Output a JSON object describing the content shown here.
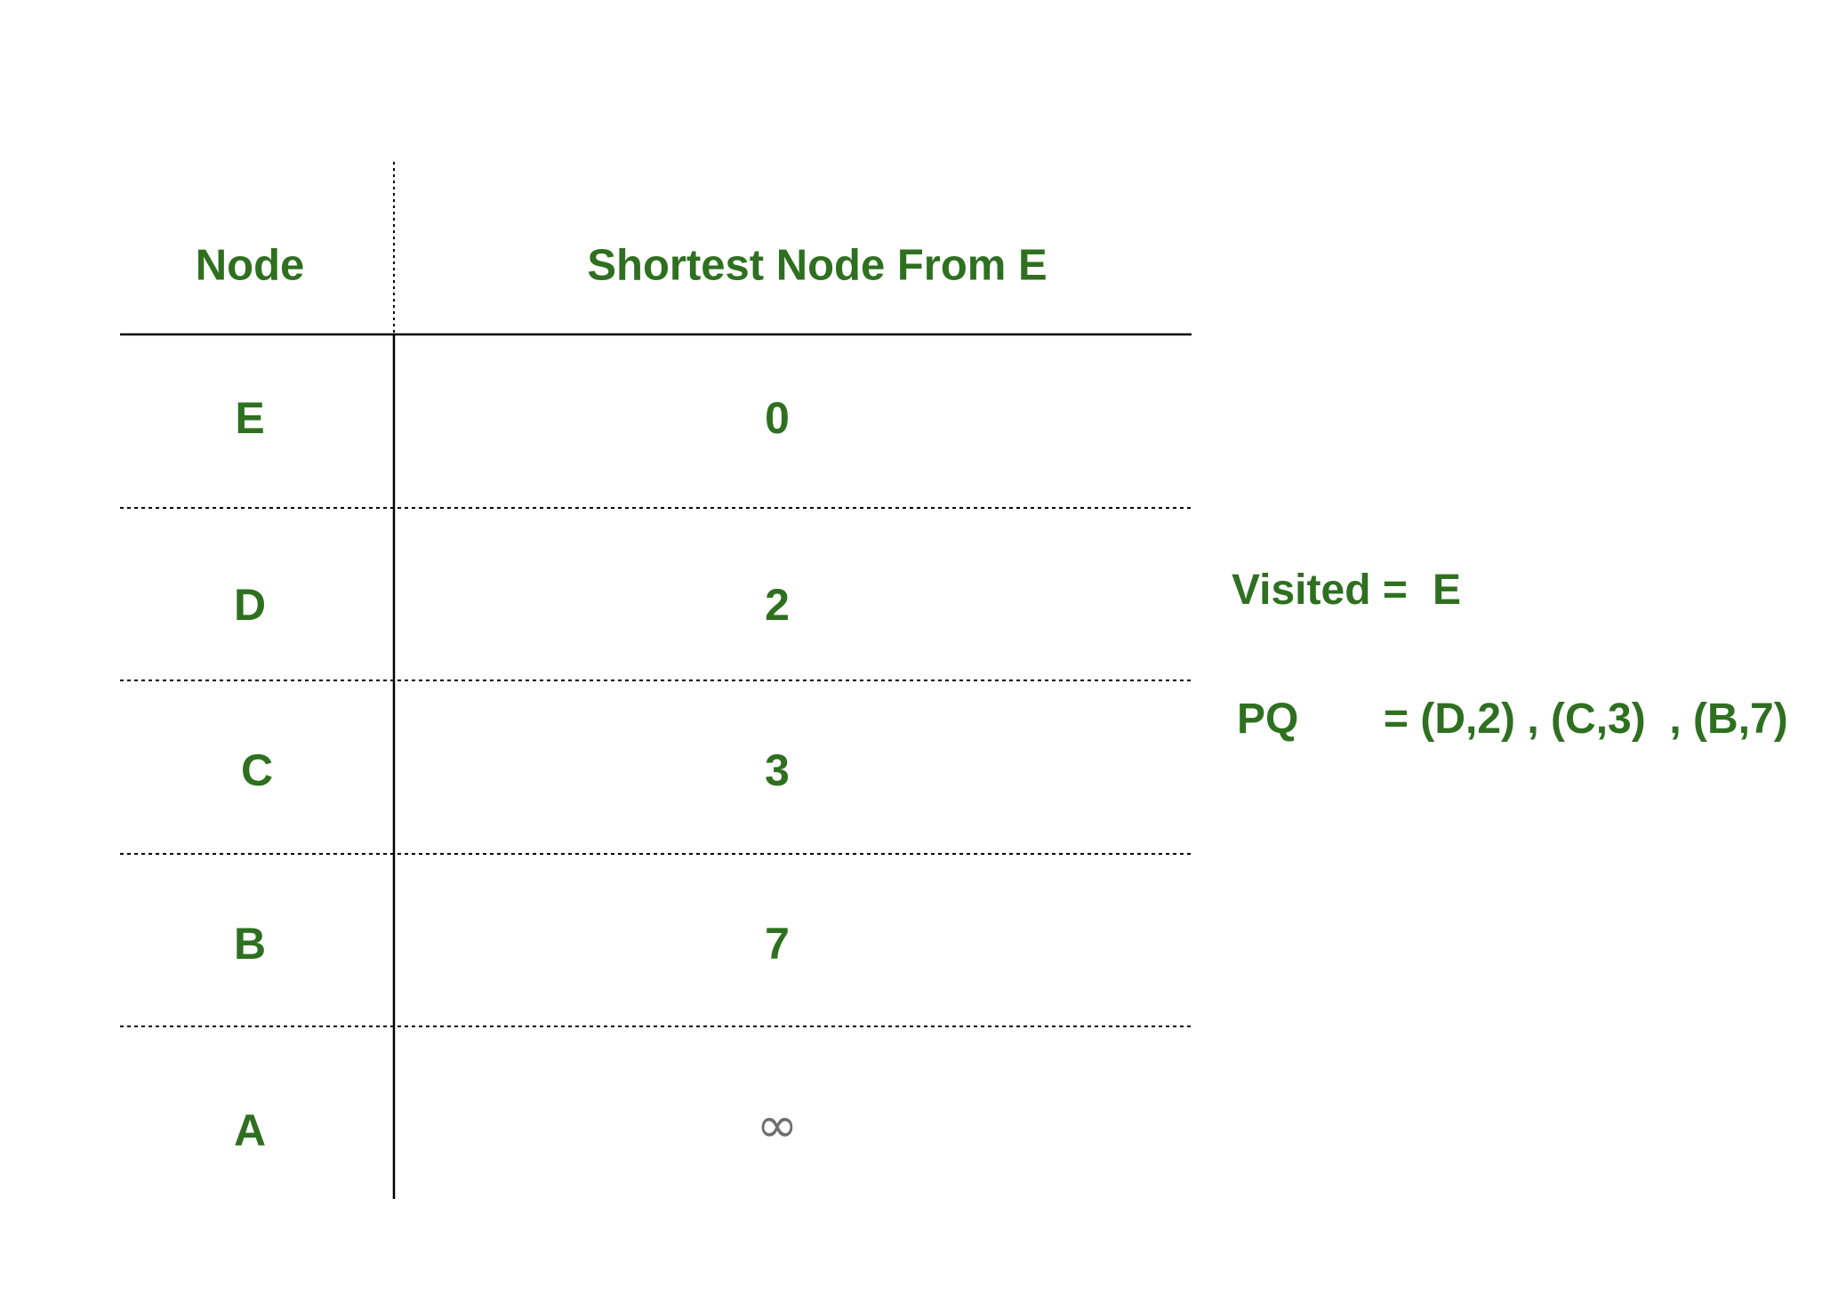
{
  "table": {
    "headers": {
      "node": "Node",
      "distance": "Shortest Node From E"
    },
    "rows": [
      {
        "node": "E",
        "distance": "0"
      },
      {
        "node": "D",
        "distance": "2"
      },
      {
        "node": "C",
        "distance": "3"
      },
      {
        "node": "B",
        "distance": "7"
      },
      {
        "node": "A",
        "distance": "∞"
      }
    ]
  },
  "visited": {
    "label": "Visited =",
    "value": "E"
  },
  "pq": {
    "label": "PQ",
    "value": "= (D,2) , (C,3)  , (B,7)"
  },
  "colors": {
    "text": "#2e7020",
    "infinity": "#6e6e6e",
    "lines": "#000000"
  }
}
